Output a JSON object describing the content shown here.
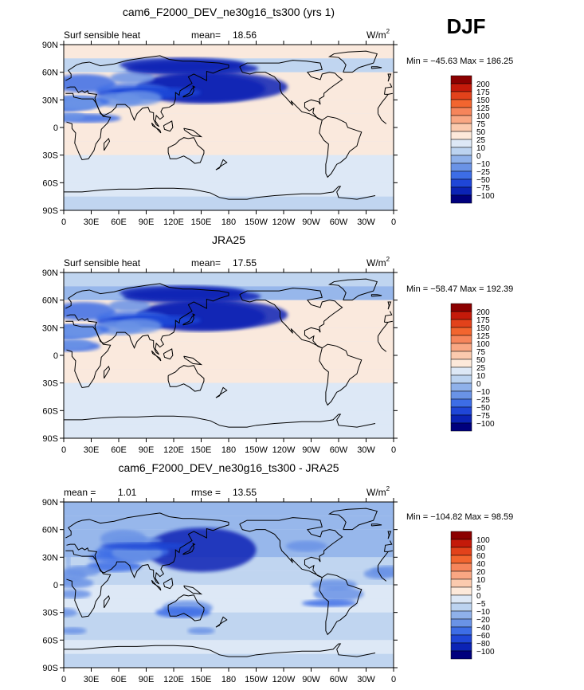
{
  "season": "DJF",
  "xticks": [
    "0",
    "30E",
    "60E",
    "90E",
    "120E",
    "150E",
    "180",
    "150W",
    "120W",
    "90W",
    "60W",
    "30W",
    "0"
  ],
  "yticks": [
    "90N",
    "60N",
    "30N",
    "0",
    "30S",
    "60S",
    "90S"
  ],
  "chart_data": [
    {
      "type": "heatmap",
      "title": "cam6_F2000_DEV_ne30g16_ts300 (yrs 1)",
      "left_label": "Surf sensible heat",
      "stat1_label": "mean=",
      "stat1_value": "18.56",
      "units": "W/m",
      "units_sup": "2",
      "minmax": "Min = −45.63 Max = 186.25",
      "xrange": [
        0,
        360
      ],
      "yrange": [
        -90,
        90
      ],
      "levels": [
        "200",
        "175",
        "150",
        "125",
        "100",
        "75",
        "50",
        "25",
        "10",
        "0",
        "−10",
        "−25",
        "−50",
        "−75",
        "−100"
      ],
      "colors": [
        "#8b0000",
        "#c41a0a",
        "#e2421b",
        "#f2652f",
        "#f6855b",
        "#f9a783",
        "#fbcaae",
        "#fde9da",
        "#dde8f6",
        "#bcd3f0",
        "#8fb1ea",
        "#6a93e6",
        "#3d6de6",
        "#1f46d7",
        "#0b23b5",
        "#00007d"
      ]
    },
    {
      "type": "heatmap",
      "title": "JRA25",
      "left_label": "Surf sensible heat",
      "stat1_label": "mean=",
      "stat1_value": "17.55",
      "units": "W/m",
      "units_sup": "2",
      "minmax": "Min = −58.47 Max = 192.39",
      "xrange": [
        0,
        360
      ],
      "yrange": [
        -90,
        90
      ],
      "levels": [
        "200",
        "175",
        "150",
        "125",
        "100",
        "75",
        "50",
        "25",
        "10",
        "0",
        "−10",
        "−25",
        "−50",
        "−75",
        "−100"
      ],
      "colors": [
        "#8b0000",
        "#c41a0a",
        "#e2421b",
        "#f2652f",
        "#f6855b",
        "#f9a783",
        "#fbcaae",
        "#fde9da",
        "#dde8f6",
        "#bcd3f0",
        "#8fb1ea",
        "#6a93e6",
        "#3d6de6",
        "#1f46d7",
        "#0b23b5",
        "#00007d"
      ]
    },
    {
      "type": "heatmap",
      "title": "cam6_F2000_DEV_ne30g16_ts300 - JRA25",
      "left_label": "mean =",
      "left_value": "1.01",
      "stat1_label": "rmse =",
      "stat1_value": "13.55",
      "units": "W/m",
      "units_sup": "2",
      "minmax": "Min = −104.82 Max =  98.59",
      "xrange": [
        0,
        360
      ],
      "yrange": [
        -90,
        90
      ],
      "levels": [
        "100",
        "80",
        "60",
        "40",
        "20",
        "10",
        "5",
        "0",
        "−5",
        "−10",
        "−20",
        "−40",
        "−60",
        "−80",
        "−100"
      ],
      "colors": [
        "#8b0000",
        "#c41a0a",
        "#e2421b",
        "#f2652f",
        "#f6855b",
        "#f9a783",
        "#fbcaae",
        "#fde9da",
        "#dde8f6",
        "#bcd3f0",
        "#8fb1ea",
        "#6a93e6",
        "#3d6de6",
        "#1f46d7",
        "#0b23b5",
        "#00007d"
      ]
    }
  ]
}
